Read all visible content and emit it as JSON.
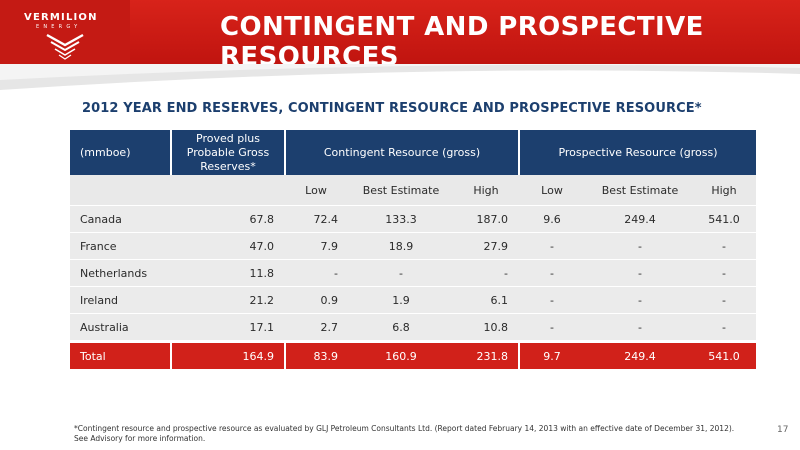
{
  "brand": {
    "name": "VERMILION",
    "sub": "ENERGY"
  },
  "title": "CONTINGENT AND PROSPECTIVE RESOURCES",
  "subtitle": "2012 YEAR END RESERVES, CONTINGENT RESOURCE AND PROSPECTIVE RESOURCE*",
  "table": {
    "header": {
      "unit": "(mmboe)",
      "reserves": "Proved plus Probable Gross Reserves*",
      "contingent": "Contingent Resource (gross)",
      "prospective": "Prospective Resource (gross)"
    },
    "subheader": [
      "Low",
      "Best Estimate",
      "High",
      "Low",
      "Best Estimate",
      "High"
    ],
    "rows": [
      {
        "country": "Canada",
        "reserves": "67.8",
        "c_low": "72.4",
        "c_best": "133.3",
        "c_high": "187.0",
        "p_low": "9.6",
        "p_best": "249.4",
        "p_high": "541.0"
      },
      {
        "country": "France",
        "reserves": "47.0",
        "c_low": "7.9",
        "c_best": "18.9",
        "c_high": "27.9",
        "p_low": "-",
        "p_best": "-",
        "p_high": "-"
      },
      {
        "country": "Netherlands",
        "reserves": "11.8",
        "c_low": "-",
        "c_best": "-",
        "c_high": "-",
        "p_low": "-",
        "p_best": "-",
        "p_high": "-"
      },
      {
        "country": "Ireland",
        "reserves": "21.2",
        "c_low": "0.9",
        "c_best": "1.9",
        "c_high": "6.1",
        "p_low": "-",
        "p_best": "-",
        "p_high": "-"
      },
      {
        "country": "Australia",
        "reserves": "17.1",
        "c_low": "2.7",
        "c_best": "6.8",
        "c_high": "10.8",
        "p_low": "-",
        "p_best": "-",
        "p_high": "-"
      }
    ],
    "total": {
      "label": "Total",
      "reserves": "164.9",
      "c_low": "83.9",
      "c_best": "160.9",
      "c_high": "231.8",
      "p_low": "9.7",
      "p_best": "249.4",
      "p_high": "541.0"
    }
  },
  "footnote": {
    "line1": "*Contingent resource and prospective resource as evaluated by GLJ Petroleum Consultants Ltd. (Report dated February 14, 2013 with an effective date of December 31, 2012).",
    "line2": "See Advisory for more information."
  },
  "page_number": "17",
  "colors": {
    "header_red": "#c0140f",
    "navy": "#1c3f6e",
    "row_gray": "#ebebeb",
    "total_red": "#d1211a"
  }
}
